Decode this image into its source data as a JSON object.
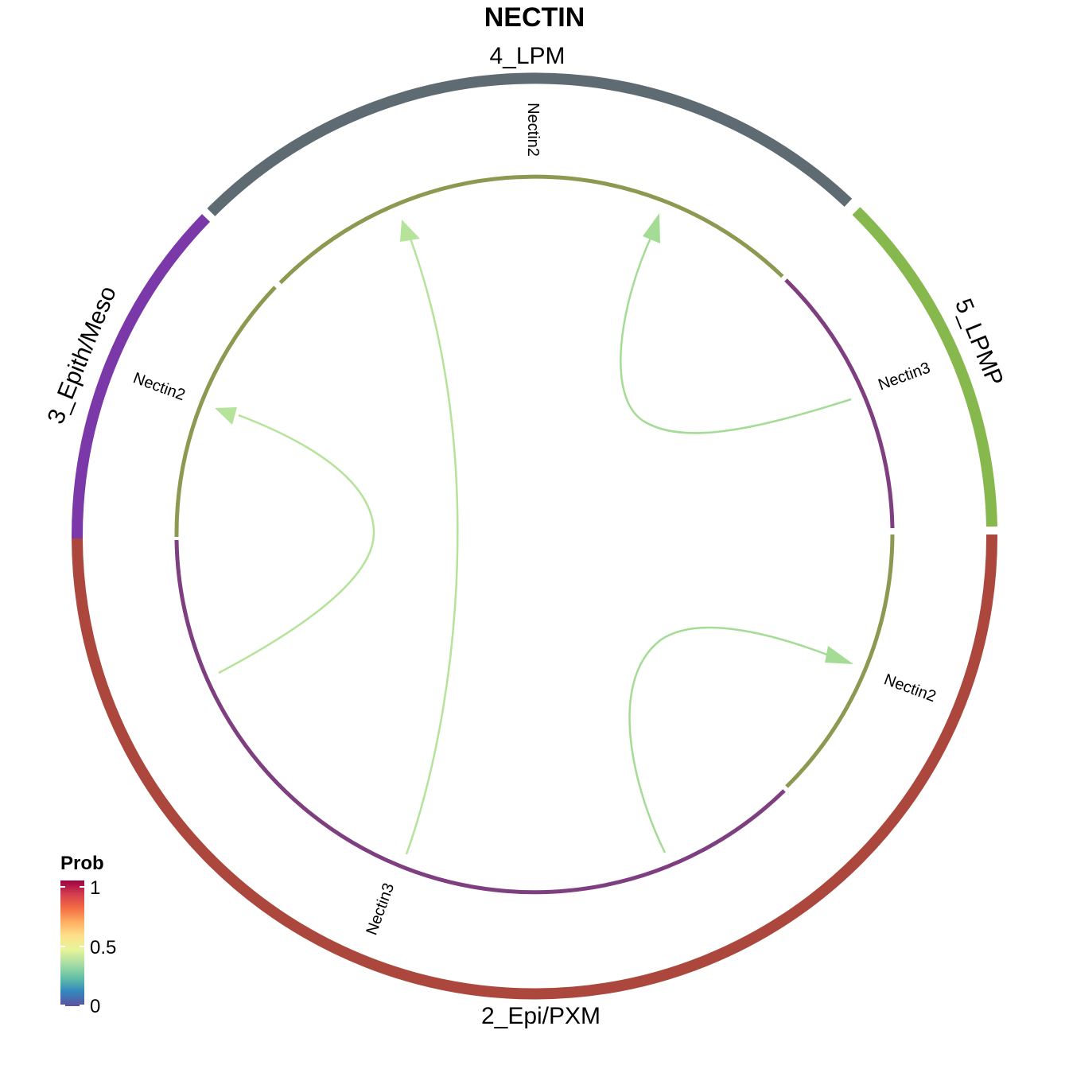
{
  "title": "NECTIN",
  "groups": [
    {
      "name": "4_LPM",
      "color": "#5f6b72"
    },
    {
      "name": "5_LPMP",
      "color": "#86b84e"
    },
    {
      "name": "2_Epi/PXM",
      "color": "#ab473c"
    },
    {
      "name": "3_Epith/Meso",
      "color": "#7b38a8"
    }
  ],
  "genes": [
    {
      "group": "4_LPM",
      "name": "Nectin2",
      "role": "receptor",
      "color": "#8b9a50"
    },
    {
      "group": "5_LPMP",
      "name": "Nectin3",
      "role": "ligand",
      "color": "#7e3e80"
    },
    {
      "group": "2_Epi/PXM",
      "name": "Nectin2",
      "role": "receptor",
      "color": "#8b9a50"
    },
    {
      "group": "2_Epi/PXM",
      "name": "Nectin3",
      "role": "ligand",
      "color": "#7e3e80"
    },
    {
      "group": "3_Epith/Meso",
      "name": "Nectin2",
      "role": "receptor",
      "color": "#8b9a50"
    }
  ],
  "links": [
    {
      "from": "2_Epi/PXM Nectin3",
      "to": "4_LPM Nectin2",
      "color": "#b5e39a"
    },
    {
      "from": "5_LPMP Nectin3",
      "to": "4_LPM Nectin2",
      "color": "#a4dc96"
    },
    {
      "from": "2_Epi/PXM Nectin3",
      "to": "3_Epith/Meso Nectin2",
      "color": "#b5e39a"
    },
    {
      "from": "2_Epi/PXM Nectin3",
      "to": "2_Epi/PXM Nectin2",
      "color": "#a4dc96"
    }
  ],
  "legend": {
    "title": "Prob",
    "ticks": [
      "1",
      "0.5",
      "0"
    ],
    "colors": [
      "#9e0142",
      "#d53e4f",
      "#f46d43",
      "#fdae61",
      "#fee08b",
      "#e6f598",
      "#abdda4",
      "#66c2a5",
      "#3288bd",
      "#5e4fa2"
    ]
  }
}
